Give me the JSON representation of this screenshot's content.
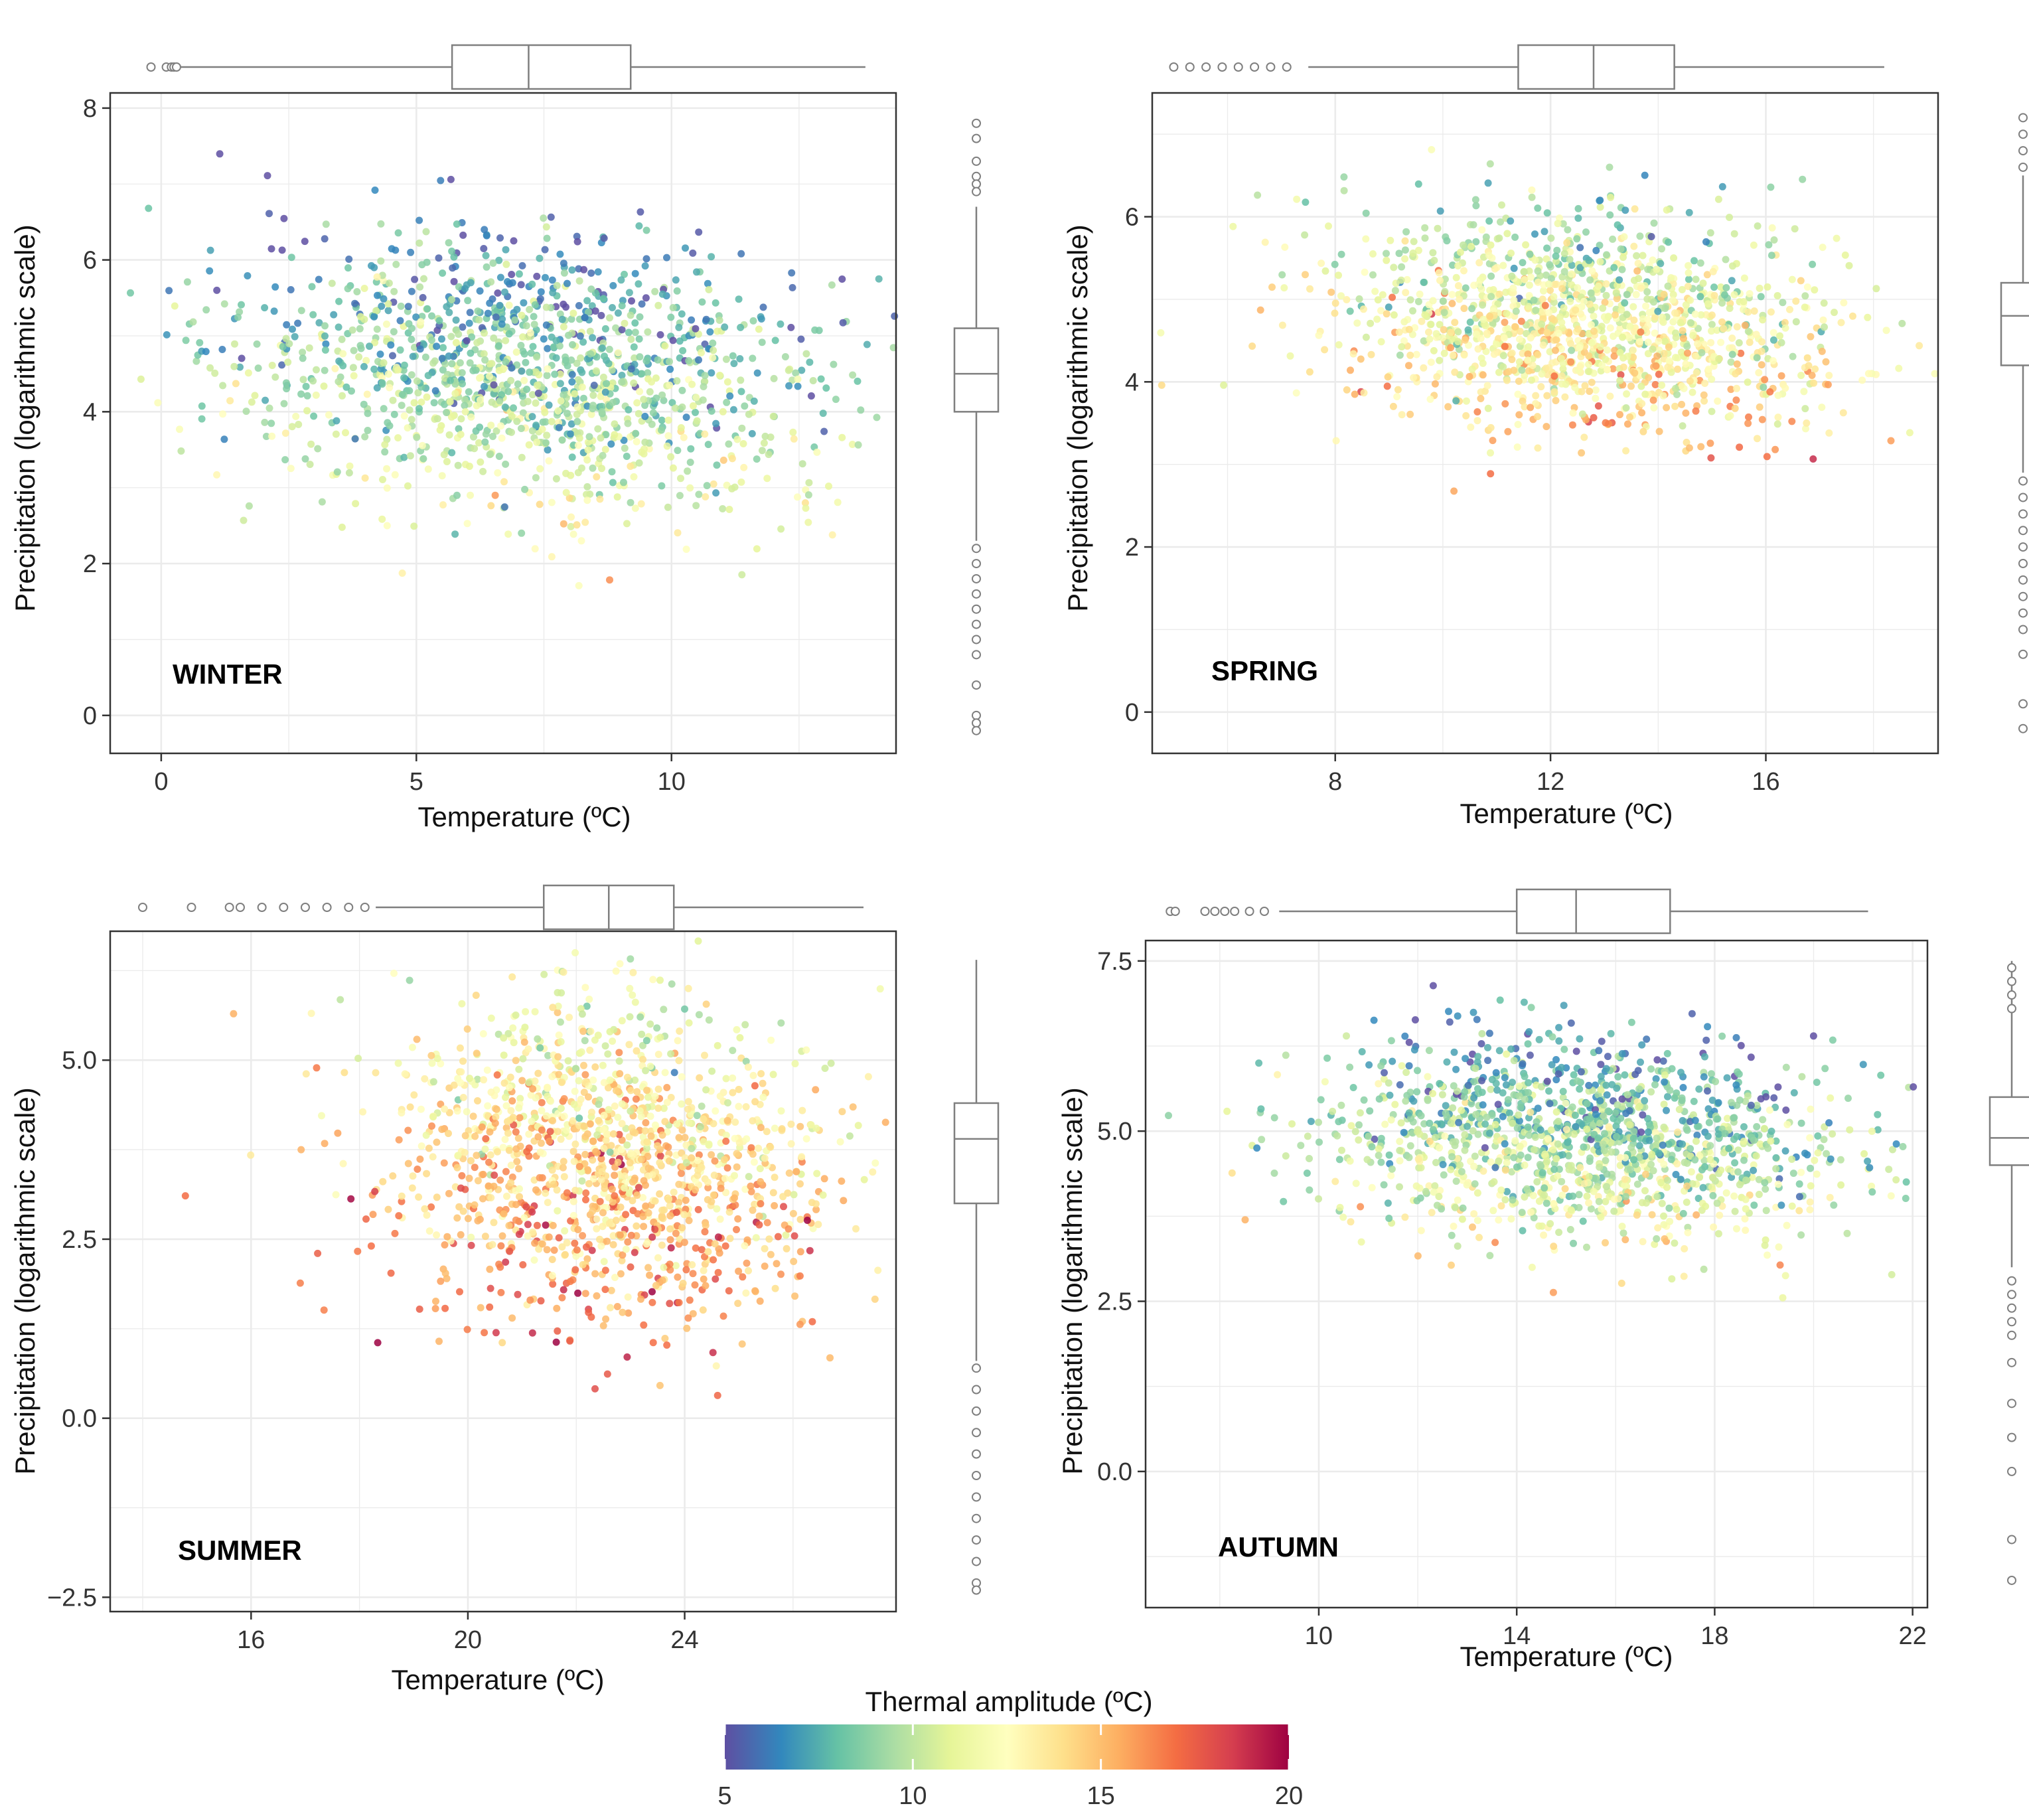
{
  "chart_data": [
    {
      "type": "scatter",
      "panel": "winter",
      "label": "WINTER",
      "xlabel": "Temperature (ºC)",
      "ylabel": "Precipitation (logarithmic scale)",
      "xlim": [
        -1,
        14.4
      ],
      "ylim": [
        -0.5,
        8.2
      ],
      "xticks": [
        0,
        5,
        10
      ],
      "yticks": [
        0,
        2,
        4,
        6,
        8
      ],
      "tick_labels_x": [
        "0",
        "5",
        "10"
      ],
      "tick_labels_y": [
        "0",
        "2",
        "4",
        "6",
        "8"
      ],
      "center": {
        "x": 7.2,
        "y": 4.5,
        "amplitude": 9.0
      },
      "spread": {
        "x": 2.8,
        "y": 0.9
      },
      "n_points": 1400,
      "x_boxplot": {
        "min": 0.3,
        "q1": 5.7,
        "median": 7.2,
        "q3": 9.2,
        "max": 13.8,
        "outliers": [
          -0.2,
          0.1,
          0.2,
          0.25,
          0.3
        ]
      },
      "y_boxplot": {
        "min": 2.3,
        "q1": 4.0,
        "median": 4.5,
        "q3": 5.1,
        "max": 6.7,
        "outliers": [
          7.8,
          7.6,
          7.3,
          7.1,
          7.0,
          6.9,
          2.2,
          2.0,
          1.8,
          1.6,
          1.4,
          1.2,
          1.0,
          0.8,
          0.4,
          0.0,
          -0.1,
          -0.2
        ]
      },
      "grid": true
    },
    {
      "type": "scatter",
      "panel": "spring",
      "label": "SPRING",
      "xlabel": "Temperature (ºC)",
      "ylabel": "Precipitation (logarithmic scale)",
      "xlim": [
        4.6,
        19.2
      ],
      "ylim": [
        -0.5,
        7.5
      ],
      "xticks": [
        8,
        12,
        16
      ],
      "yticks": [
        0,
        2,
        4,
        6
      ],
      "tick_labels_x": [
        "8",
        "12",
        "16"
      ],
      "tick_labels_y": [
        "0",
        "2",
        "4",
        "6"
      ],
      "center": {
        "x": 12.6,
        "y": 4.7,
        "amplitude": 12.0
      },
      "spread": {
        "x": 2.3,
        "y": 0.65
      },
      "n_points": 1400,
      "x_boxplot": {
        "min": 7.5,
        "q1": 11.4,
        "median": 12.8,
        "q3": 14.3,
        "max": 18.2,
        "outliers": [
          5.0,
          5.3,
          5.6,
          5.9,
          6.2,
          6.5,
          6.8,
          7.1
        ]
      },
      "y_boxplot": {
        "min": 2.9,
        "q1": 4.2,
        "median": 4.8,
        "q3": 5.2,
        "max": 6.5,
        "outliers": [
          7.2,
          7.0,
          6.8,
          6.6,
          2.8,
          2.6,
          2.4,
          2.2,
          2.0,
          1.8,
          1.6,
          1.4,
          1.2,
          1.0,
          0.7,
          0.1,
          -0.2
        ]
      },
      "grid": true
    },
    {
      "type": "scatter",
      "panel": "summer",
      "label": "SUMMER",
      "xlabel": "Temperature (ºC)",
      "ylabel": "Precipitation (logarithmic scale)",
      "xlim": [
        13.4,
        27.9
      ],
      "ylim": [
        -2.7,
        6.8
      ],
      "xticks": [
        16,
        20,
        24
      ],
      "yticks": [
        -2.5,
        0.0,
        2.5,
        5.0
      ],
      "tick_labels_x": [
        "16",
        "20",
        "24"
      ],
      "tick_labels_y": [
        "−2.5",
        "0.0",
        "2.5",
        "5.0"
      ],
      "center": {
        "x": 22.5,
        "y": 3.6,
        "amplitude": 14.0
      },
      "spread": {
        "x": 2.0,
        "y": 1.1
      },
      "n_points": 1400,
      "x_boxplot": {
        "min": 18.3,
        "q1": 21.4,
        "median": 22.6,
        "q3": 23.8,
        "max": 27.3,
        "outliers": [
          14.0,
          14.9,
          15.6,
          15.8,
          16.2,
          16.6,
          17.0,
          17.4,
          17.8,
          18.1
        ]
      },
      "y_boxplot": {
        "min": 0.8,
        "q1": 3.0,
        "median": 3.9,
        "q3": 4.4,
        "max": 6.4,
        "outliers": [
          0.7,
          0.4,
          0.1,
          -0.2,
          -0.5,
          -0.8,
          -1.1,
          -1.4,
          -1.7,
          -2.0,
          -2.3,
          -2.4
        ]
      },
      "grid": true
    },
    {
      "type": "scatter",
      "panel": "autumn",
      "label": "AUTUMN",
      "xlabel": "Temperature (ºC)",
      "ylabel": "Precipitation (logarithmic scale)",
      "xlim": [
        6.5,
        22.3
      ],
      "ylim": [
        -2.0,
        7.8
      ],
      "xticks": [
        10,
        14,
        18,
        22
      ],
      "yticks": [
        0.0,
        2.5,
        5.0,
        7.5
      ],
      "tick_labels_x": [
        "10",
        "14",
        "18",
        "22"
      ],
      "tick_labels_y": [
        "0.0",
        "2.5",
        "5.0",
        "7.5"
      ],
      "center": {
        "x": 15.4,
        "y": 4.9,
        "amplitude": 9.5
      },
      "spread": {
        "x": 2.6,
        "y": 0.7
      },
      "n_points": 1400,
      "x_boxplot": {
        "min": 9.2,
        "q1": 14.0,
        "median": 15.2,
        "q3": 17.1,
        "max": 21.1,
        "outliers": [
          7.0,
          7.1,
          7.7,
          7.9,
          8.1,
          8.3,
          8.6,
          8.9
        ]
      },
      "y_boxplot": {
        "min": 3.0,
        "q1": 4.5,
        "median": 4.9,
        "q3": 5.5,
        "max": 7.5,
        "outliers": [
          7.4,
          7.2,
          7.0,
          6.8,
          2.8,
          2.6,
          2.4,
          2.2,
          2.0,
          1.6,
          1.0,
          0.5,
          0.0,
          -1.0,
          -1.6
        ]
      },
      "grid": true
    }
  ],
  "colorbar": {
    "title": "Thermal amplitude (ºC)",
    "min": 5,
    "max": 20,
    "ticks": [
      5,
      10,
      15,
      20
    ],
    "tick_labels": [
      "5",
      "10",
      "15",
      "20"
    ],
    "colors": [
      "#5e4fa2",
      "#3288bd",
      "#66c2a5",
      "#abdda4",
      "#e6f598",
      "#ffffbf",
      "#fee08b",
      "#fdae61",
      "#f46d43",
      "#d53e4f",
      "#9e0142"
    ]
  },
  "style": {
    "box_color": "#7f7f7f",
    "grid_color": "#ebebeb",
    "frame_color": "#333333"
  }
}
